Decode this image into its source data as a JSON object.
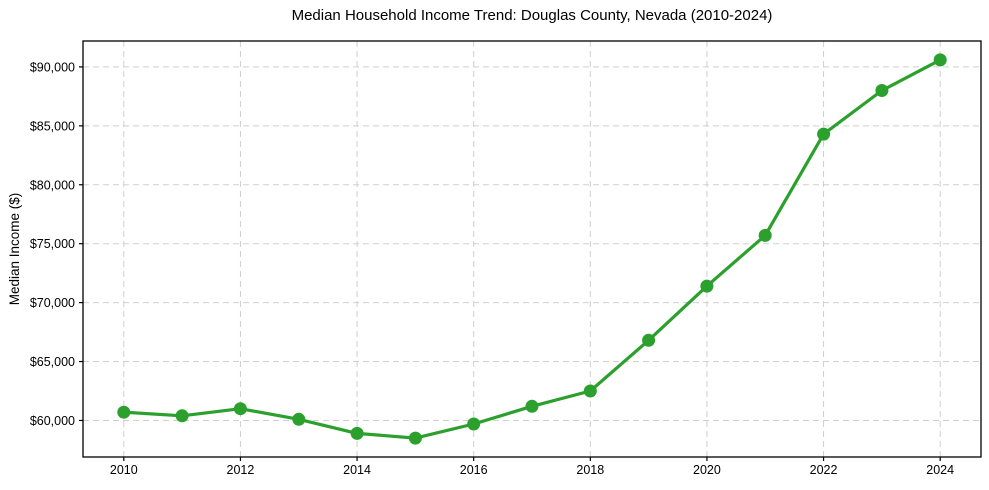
{
  "chart_data": {
    "type": "line",
    "title": "Median Household Income Trend: Douglas County, Nevada (2010-2024)",
    "xlabel": "",
    "ylabel": "Median Income ($)",
    "x": [
      2010,
      2011,
      2012,
      2013,
      2014,
      2015,
      2016,
      2017,
      2018,
      2019,
      2020,
      2021,
      2022,
      2023,
      2024
    ],
    "series": [
      {
        "name": "Median Household Income",
        "values": [
          60700,
          60400,
          61000,
          60100,
          58900,
          58500,
          59700,
          61200,
          62500,
          66800,
          71400,
          75700,
          84300,
          88000,
          90600
        ]
      }
    ],
    "x_ticks": {
      "values": [
        2010,
        2012,
        2014,
        2016,
        2018,
        2020,
        2022,
        2024
      ],
      "labels": [
        "2010",
        "2012",
        "2014",
        "2016",
        "2018",
        "2020",
        "2022",
        "2024"
      ]
    },
    "y_ticks": {
      "values": [
        60000,
        65000,
        70000,
        75000,
        80000,
        85000,
        90000
      ],
      "labels": [
        "$60,000",
        "$65,000",
        "$70,000",
        "$75,000",
        "$80,000",
        "$85,000",
        "$90,000"
      ]
    },
    "xlim": [
      2009.3,
      2024.7
    ],
    "ylim": [
      56900,
      92200
    ],
    "grid": true,
    "legend": "none",
    "colors": {
      "line": "#2ca02c",
      "marker": "#2ca02c",
      "grid": "#d0d0d0",
      "frame": "#000000",
      "text": "#000000",
      "background": "#ffffff"
    }
  }
}
